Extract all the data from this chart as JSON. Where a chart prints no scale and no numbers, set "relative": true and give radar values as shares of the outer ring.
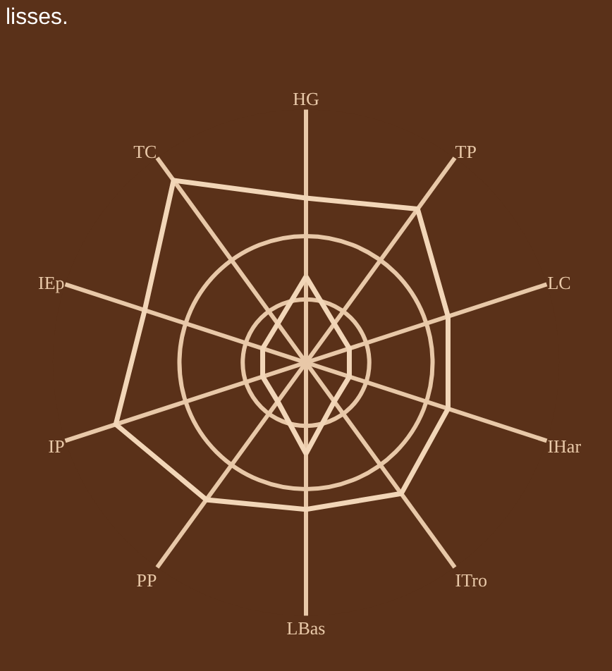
{
  "chart_data": {
    "type": "radar",
    "relative": true,
    "categories": [
      "HG",
      "TP",
      "LC",
      "IHar",
      "ITro",
      "LBas",
      "PP",
      "IP",
      "IEp",
      "TC"
    ],
    "series": [
      {
        "color": "#f2d6b8",
        "values": [
          0.65,
          0.75,
          0.59,
          0.59,
          0.64,
          0.58,
          0.67,
          0.79,
          0.67,
          0.89
        ]
      },
      {
        "color": "#f2d6b8",
        "values": [
          0.34,
          0.19,
          0.18,
          0.18,
          0.19,
          0.36,
          0.19,
          0.18,
          0.18,
          0.19
        ]
      }
    ],
    "grid": true,
    "marker": "none",
    "line_style": "solid",
    "annotations": [
      "lisses."
    ]
  }
}
